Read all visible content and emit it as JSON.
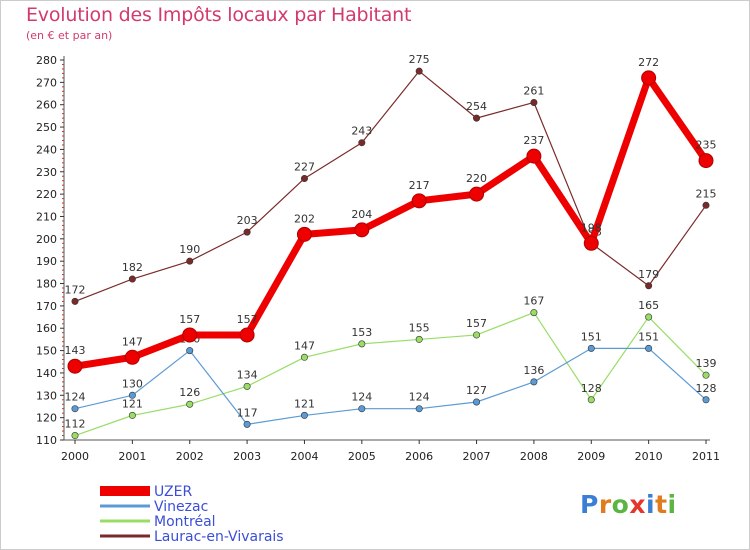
{
  "title": "Evolution des Impôts locaux par Habitant",
  "subtitle": "(en € et par an)",
  "chart_data": {
    "type": "line",
    "title": "Evolution des Impôts locaux par Habitant",
    "subtitle": "(en € et par an)",
    "xlabel": "",
    "ylabel": "",
    "categories": [
      "2000",
      "2001",
      "2002",
      "2003",
      "2004",
      "2005",
      "2006",
      "2007",
      "2008",
      "2009",
      "2010",
      "2011"
    ],
    "ylim": [
      110,
      280
    ],
    "yticks": [
      110,
      120,
      130,
      140,
      150,
      160,
      170,
      180,
      190,
      200,
      210,
      220,
      230,
      240,
      250,
      260,
      270,
      280
    ],
    "grid": false,
    "legend_position": "bottom-left",
    "series": [
      {
        "name": "Laurac-en-Vivarais",
        "color": "#7b2a2a",
        "values": [
          172,
          182,
          190,
          203,
          227,
          243,
          275,
          254,
          261,
          198,
          179,
          215
        ]
      },
      {
        "name": "Montréal",
        "color": "#99dd66",
        "values": [
          112,
          121,
          126,
          134,
          147,
          153,
          155,
          157,
          167,
          128,
          165,
          139
        ]
      },
      {
        "name": "Vinezac",
        "color": "#5b9bd5",
        "values": [
          124,
          130,
          150,
          117,
          121,
          124,
          124,
          127,
          136,
          151,
          151,
          128
        ]
      },
      {
        "name": "UZER",
        "color": "#ee0000",
        "values": [
          143,
          147,
          157,
          157,
          202,
          204,
          217,
          220,
          237,
          198,
          272,
          235
        ]
      }
    ]
  },
  "legend": [
    {
      "label": "UZER",
      "color": "#ee0000"
    },
    {
      "label": "Vinezac",
      "color": "#5b9bd5"
    },
    {
      "label": "Montréal",
      "color": "#99dd66"
    },
    {
      "label": "Laurac-en-Vivarais",
      "color": "#7b2a2a"
    }
  ],
  "logo": {
    "letters": [
      "P",
      "r",
      "o",
      "x",
      "i",
      "t",
      "i"
    ],
    "colors": [
      "#3a7fd5",
      "#e07b1e",
      "#5bb542",
      "#e6352b",
      "#3a7fd5",
      "#e07b1e",
      "#5bb542"
    ]
  }
}
